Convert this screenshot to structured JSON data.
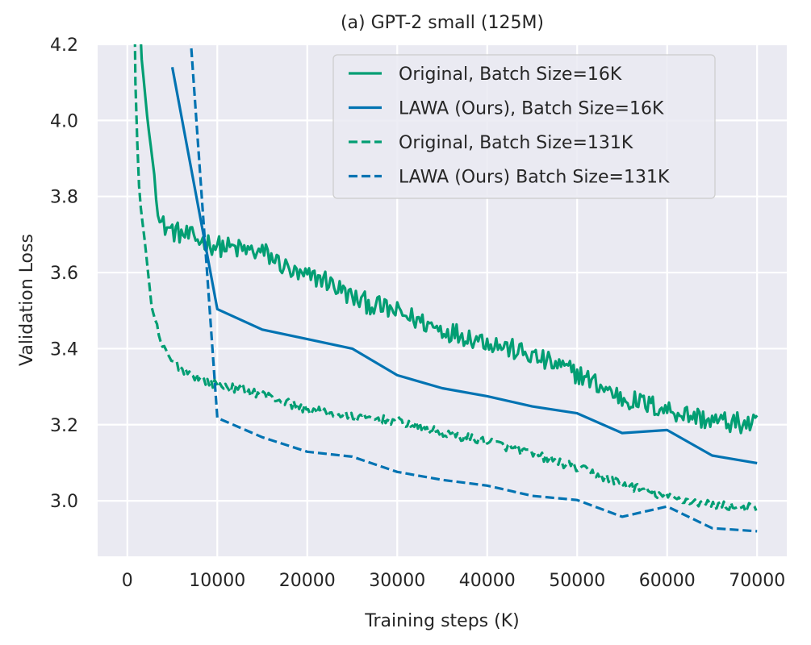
{
  "chart_data": {
    "type": "line",
    "title": "(a) GPT-2 small (125M)",
    "xlabel": "Training steps (K)",
    "ylabel": "Validation Loss",
    "xlim": [
      -3300,
      73300
    ],
    "ylim": [
      2.854,
      4.2
    ],
    "xticks": [
      0,
      10000,
      20000,
      30000,
      40000,
      50000,
      60000,
      70000
    ],
    "xtick_labels": [
      "0",
      "10000",
      "20000",
      "30000",
      "40000",
      "50000",
      "60000",
      "70000"
    ],
    "yticks": [
      3.0,
      3.2,
      3.4,
      3.6,
      3.8,
      4.0,
      4.2
    ],
    "ytick_labels": [
      "3.0",
      "3.2",
      "3.4",
      "3.6",
      "3.8",
      "4.0",
      "4.2"
    ],
    "grid": true,
    "legend_position": "top-right",
    "background": "#eaeaf2",
    "series": [
      {
        "name": "Original, Batch Size=16K",
        "color": "#029e73",
        "dash": "solid",
        "noisy": true,
        "x": [
          800,
          1440,
          2250,
          3300,
          3600,
          5000,
          7400,
          10000,
          15400,
          19000,
          21700,
          25300,
          30000,
          35000,
          40000,
          45000,
          50000,
          55000,
          60000,
          65000,
          70000
        ],
        "y": [
          5.2,
          4.2,
          4.0,
          3.8,
          3.73,
          3.71,
          3.69,
          3.67,
          3.65,
          3.59,
          3.585,
          3.53,
          3.495,
          3.45,
          3.42,
          3.38,
          3.335,
          3.27,
          3.24,
          3.21,
          3.2
        ]
      },
      {
        "name": "LAWA (Ours), Batch Size=16K",
        "color": "#0173b2",
        "dash": "solid",
        "noisy": false,
        "x": [
          5000,
          10000,
          15000,
          20000,
          25000,
          30000,
          35000,
          40000,
          45000,
          50000,
          55000,
          60000,
          65000,
          70000
        ],
        "y": [
          4.14,
          3.504,
          3.45,
          3.425,
          3.4,
          3.33,
          3.296,
          3.275,
          3.248,
          3.23,
          3.178,
          3.186,
          3.119,
          3.099
        ]
      },
      {
        "name": "Original, Batch Size=131K",
        "color": "#029e73",
        "dash": "dashed",
        "noisy": true,
        "x": [
          500,
          800,
          1000,
          1350,
          2000,
          2700,
          3800,
          4800,
          6500,
          9200,
          11000,
          15000,
          20000,
          25000,
          30000,
          35000,
          40000,
          45000,
          50000,
          55000,
          60000,
          65000,
          70000
        ],
        "y": [
          5.2,
          4.2,
          4.0,
          3.8,
          3.67,
          3.51,
          3.41,
          3.37,
          3.34,
          3.31,
          3.3,
          3.28,
          3.24,
          3.22,
          3.21,
          3.178,
          3.157,
          3.123,
          3.087,
          3.045,
          3.01,
          2.99,
          2.98
        ]
      },
      {
        "name": "LAWA (Ours) Batch Size=131K",
        "color": "#0173b2",
        "dash": "dashed",
        "noisy": false,
        "x": [
          5000,
          10000,
          15000,
          20000,
          25000,
          30000,
          35000,
          40000,
          45000,
          50000,
          55000,
          60000,
          65000,
          70000
        ],
        "y": [
          4.9,
          3.218,
          3.167,
          3.129,
          3.116,
          3.076,
          3.055,
          3.04,
          3.013,
          3.002,
          2.958,
          2.985,
          2.928,
          2.92
        ]
      }
    ]
  }
}
